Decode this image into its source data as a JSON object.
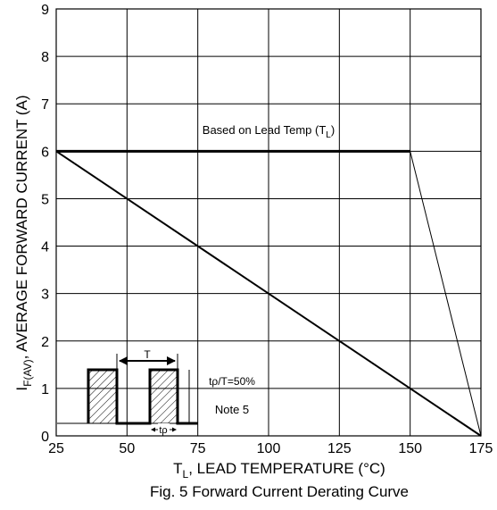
{
  "chart_data": {
    "type": "line",
    "caption": "Fig. 5 Forward Current Derating Curve",
    "xlabel": {
      "main": "T",
      "sub": "L",
      "rest": ", LEAD TEMPERATURE (°C)"
    },
    "ylabel": {
      "main": "I",
      "sub": "F(AV)",
      "rest": ", AVERAGE FORWARD CURRENT (A)"
    },
    "xlim": [
      25,
      175
    ],
    "ylim": [
      0,
      9
    ],
    "xticks": [
      25,
      50,
      75,
      100,
      125,
      150,
      175
    ],
    "yticks": [
      0,
      1,
      2,
      3,
      4,
      5,
      6,
      7,
      8,
      9
    ],
    "grid": true,
    "series": [
      {
        "name": "Based on Lead Temp (TL)",
        "x": [
          25,
          150,
          175
        ],
        "y": [
          6,
          6,
          0
        ]
      },
      {
        "name": "",
        "x": [
          25,
          175
        ],
        "y": [
          6,
          0
        ]
      }
    ],
    "annotations": {
      "curve_label": {
        "main": "Based on Lead Temp (T",
        "sub": "L",
        "rest": ")"
      },
      "period_label": "T",
      "pulse_width_label": "tρ",
      "duty_label": "tρ/T=50%",
      "note": "Note 5"
    },
    "colors": {
      "line": "#000000",
      "grid": "#000000",
      "background": "#ffffff"
    }
  }
}
